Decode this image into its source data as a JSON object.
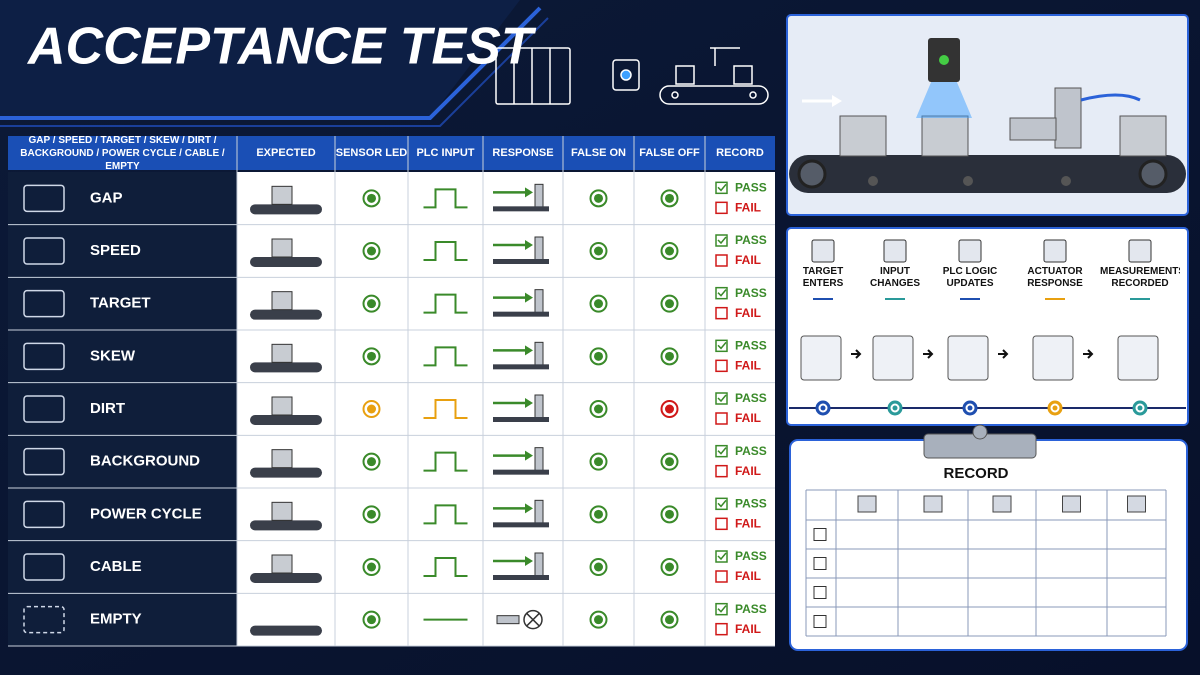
{
  "header": {
    "title": "ACCEPTANCE TEST"
  },
  "table": {
    "headers": [
      "GAP / SPEED / TARGET / SKEW / DIRT / BACKGROUND / POWER CYCLE / CABLE / EMPTY",
      "EXPECTED",
      "SENSOR LED",
      "PLC INPUT",
      "RESPONSE",
      "FALSE ON",
      "FALSE OFF",
      "RECORD"
    ],
    "rows": [
      {
        "label": "GAP",
        "led": "#3a8a2a",
        "plc": "pulse",
        "plc_color": "#3a8a2a",
        "response": "actuate",
        "false_on": "#3a8a2a",
        "false_off": "#3a8a2a",
        "pass": "PASS",
        "fail": "FAIL"
      },
      {
        "label": "SPEED",
        "led": "#3a8a2a",
        "plc": "pulse",
        "plc_color": "#3a8a2a",
        "response": "actuate",
        "false_on": "#3a8a2a",
        "false_off": "#3a8a2a",
        "pass": "PASS",
        "fail": "FAIL"
      },
      {
        "label": "TARGET",
        "led": "#3a8a2a",
        "plc": "pulse",
        "plc_color": "#3a8a2a",
        "response": "actuate",
        "false_on": "#3a8a2a",
        "false_off": "#3a8a2a",
        "pass": "PASS",
        "fail": "FAIL"
      },
      {
        "label": "SKEW",
        "led": "#3a8a2a",
        "plc": "pulse",
        "plc_color": "#3a8a2a",
        "response": "actuate",
        "false_on": "#3a8a2a",
        "false_off": "#3a8a2a",
        "pass": "PASS",
        "fail": "FAIL"
      },
      {
        "label": "DIRT",
        "led": "#e8a010",
        "plc": "pulse",
        "plc_color": "#e8a010",
        "response": "actuate",
        "false_on": "#3a8a2a",
        "false_off": "#d01818",
        "pass": "PASS",
        "fail": "FAIL"
      },
      {
        "label": "BACKGROUND",
        "led": "#3a8a2a",
        "plc": "pulse",
        "plc_color": "#3a8a2a",
        "response": "actuate",
        "false_on": "#3a8a2a",
        "false_off": "#3a8a2a",
        "pass": "PASS",
        "fail": "FAIL"
      },
      {
        "label": "POWER CYCLE",
        "led": "#3a8a2a",
        "plc": "pulse",
        "plc_color": "#3a8a2a",
        "response": "actuate",
        "false_on": "#3a8a2a",
        "false_off": "#3a8a2a",
        "pass": "PASS",
        "fail": "FAIL"
      },
      {
        "label": "CABLE",
        "led": "#3a8a2a",
        "plc": "pulse",
        "plc_color": "#3a8a2a",
        "response": "actuate",
        "false_on": "#3a8a2a",
        "false_off": "#3a8a2a",
        "pass": "PASS",
        "fail": "FAIL"
      },
      {
        "label": "EMPTY",
        "led": "#3a8a2a",
        "plc": "flat",
        "plc_color": "#3a8a2a",
        "response": "none",
        "false_on": "#3a8a2a",
        "false_off": "#3a8a2a",
        "pass": "PASS",
        "fail": "FAIL"
      }
    ]
  },
  "process": {
    "steps": [
      {
        "label": "TARGET ENTERS",
        "color": "#1f4fb0"
      },
      {
        "label": "INPUT CHANGES",
        "color": "#2a9a9a"
      },
      {
        "label": "PLC LOGIC UPDATES",
        "color": "#1f4fb0"
      },
      {
        "label": "ACTUATOR RESPONSE",
        "color": "#e8a010"
      },
      {
        "label": "MEASUREMENTS RECORDED",
        "color": "#2a9a9a"
      }
    ]
  },
  "record": {
    "title": "RECORD"
  }
}
